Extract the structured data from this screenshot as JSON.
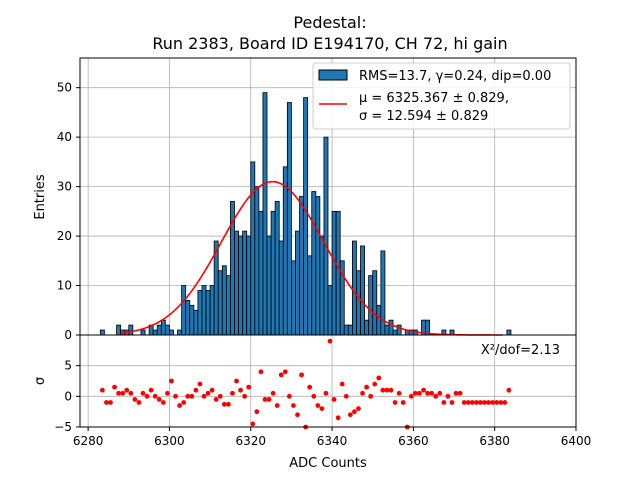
{
  "chart_data": {
    "type": "bar",
    "title_line1": "Pedestal:",
    "title_line2": "Run 2383, Board ID E194170, CH 72, hi gain",
    "xlabel": "ADC Counts",
    "ylabel_top": "Entries",
    "ylabel_bottom": "σ",
    "xlim": [
      6278,
      6400
    ],
    "ylim_top": [
      0,
      56
    ],
    "ylim_bottom": [
      -5,
      10
    ],
    "x_ticks": [
      6280,
      6300,
      6320,
      6340,
      6360,
      6380,
      6400
    ],
    "y_ticks_top": [
      0,
      10,
      20,
      30,
      40,
      50
    ],
    "y_ticks_bottom": [
      -5,
      0,
      5
    ],
    "grid": true,
    "legend": {
      "position": "top-right",
      "hist_label": "RMS=13.7, γ=0.24, dip=0.00",
      "fit_label_line1": "μ = 6325.367 ± 0.829,",
      "fit_label_line2": "σ = 12.594 ± 0.829"
    },
    "chi2_label": "X²/dof=2.13",
    "fit": {
      "mu": 6325.367,
      "sigma": 12.594,
      "amplitude": 31,
      "color": "#ff0000"
    },
    "histogram": {
      "color": "#1f77b4",
      "bin_start": 6283,
      "bin_width": 1,
      "counts": [
        1,
        0,
        0,
        0,
        2,
        1,
        1,
        2,
        0,
        0,
        1,
        0,
        2,
        1,
        2,
        3,
        2,
        1,
        0,
        1,
        10,
        7,
        6,
        5,
        9,
        10,
        9,
        10,
        19,
        13,
        14,
        12,
        27,
        21,
        20,
        21,
        20,
        35,
        30,
        25,
        49,
        20,
        25,
        27,
        19,
        34,
        47,
        15,
        21,
        28,
        48,
        16,
        29,
        28,
        20,
        40,
        10,
        25,
        25,
        15,
        2,
        2,
        19,
        13,
        18,
        3,
        12,
        13,
        6,
        17,
        2,
        3,
        1,
        2,
        0,
        1,
        1,
        1,
        0,
        3,
        3,
        0,
        0,
        0,
        1,
        0,
        1,
        0,
        0,
        0,
        0,
        0,
        0,
        0,
        0,
        0,
        0,
        0,
        0,
        0,
        1
      ]
    },
    "residuals": {
      "color": "#ff0000",
      "points": [
        [
          6283.5,
          1
        ],
        [
          6284.5,
          -1
        ],
        [
          6285.5,
          -1
        ],
        [
          6286.5,
          1.5
        ],
        [
          6287.5,
          0.5
        ],
        [
          6288.5,
          0.5
        ],
        [
          6289.5,
          1
        ],
        [
          6290.5,
          0.5
        ],
        [
          6291.5,
          -0.5
        ],
        [
          6292.5,
          -1
        ],
        [
          6293.5,
          0.5
        ],
        [
          6294.5,
          0
        ],
        [
          6295.5,
          1
        ],
        [
          6296.5,
          0
        ],
        [
          6297.5,
          -0.5
        ],
        [
          6298.5,
          -1
        ],
        [
          6299.5,
          0.5
        ],
        [
          6300.5,
          2.5
        ],
        [
          6301.5,
          0
        ],
        [
          6302.5,
          -1.5
        ],
        [
          6303.5,
          -1
        ],
        [
          6304.5,
          0
        ],
        [
          6305.5,
          0
        ],
        [
          6306.5,
          1
        ],
        [
          6307.5,
          2
        ],
        [
          6308.5,
          0
        ],
        [
          6309.5,
          0.5
        ],
        [
          6310.5,
          1
        ],
        [
          6311.5,
          -0.5
        ],
        [
          6312.5,
          0
        ],
        [
          6313.5,
          -1.3
        ],
        [
          6314.5,
          -1.3
        ],
        [
          6315.5,
          0.5
        ],
        [
          6316.5,
          2.5
        ],
        [
          6317.5,
          1
        ],
        [
          6318.5,
          0
        ],
        [
          6319.5,
          1.5
        ],
        [
          6320.5,
          -4.5
        ],
        [
          6321.5,
          -2.5
        ],
        [
          6322.5,
          4
        ],
        [
          6323.5,
          -0.5
        ],
        [
          6324.5,
          -0.5
        ],
        [
          6325.5,
          0.5
        ],
        [
          6326.5,
          -1.5
        ],
        [
          6327.5,
          3.5
        ],
        [
          6328.5,
          4
        ],
        [
          6329.5,
          0
        ],
        [
          6330.5,
          -1.5
        ],
        [
          6331.5,
          -3
        ],
        [
          6332.5,
          3.5
        ],
        [
          6333.5,
          -5
        ],
        [
          6334.5,
          1.5
        ],
        [
          6335.5,
          0
        ],
        [
          6336.5,
          -1.5
        ],
        [
          6337.5,
          -2
        ],
        [
          6338.5,
          0.5
        ],
        [
          6339.5,
          9
        ],
        [
          6340.5,
          -0.5
        ],
        [
          6341.5,
          -3.5
        ],
        [
          6342.5,
          2
        ],
        [
          6343.5,
          0
        ],
        [
          6344.5,
          -3
        ],
        [
          6345.5,
          -2.5
        ],
        [
          6346.5,
          -2
        ],
        [
          6347.5,
          0.5
        ],
        [
          6348.5,
          1.5
        ],
        [
          6349.5,
          0
        ],
        [
          6350.5,
          2
        ],
        [
          6351.5,
          3
        ],
        [
          6352.5,
          1
        ],
        [
          6353.5,
          1
        ],
        [
          6354.5,
          1
        ],
        [
          6355.5,
          -1
        ],
        [
          6356.5,
          0.5
        ],
        [
          6357.5,
          -1
        ],
        [
          6358.5,
          -5
        ],
        [
          6359.5,
          0
        ],
        [
          6360.5,
          0.5
        ],
        [
          6361.5,
          0.5
        ],
        [
          6362.5,
          1
        ],
        [
          6363.5,
          0.5
        ],
        [
          6364.5,
          0.5
        ],
        [
          6365.5,
          0
        ],
        [
          6366.5,
          0.5
        ],
        [
          6367.5,
          -1
        ],
        [
          6368.5,
          0
        ],
        [
          6369.5,
          -1
        ],
        [
          6370.5,
          0.5
        ],
        [
          6371.5,
          0.5
        ],
        [
          6372.5,
          -1
        ],
        [
          6373.5,
          -1
        ],
        [
          6374.5,
          -1
        ],
        [
          6375.5,
          -1
        ],
        [
          6376.5,
          -1
        ],
        [
          6377.5,
          -1
        ],
        [
          6378.5,
          -1
        ],
        [
          6379.5,
          -1
        ],
        [
          6380.5,
          -1
        ],
        [
          6381.5,
          -1
        ],
        [
          6382.5,
          -1
        ],
        [
          6383.5,
          1
        ]
      ]
    }
  }
}
